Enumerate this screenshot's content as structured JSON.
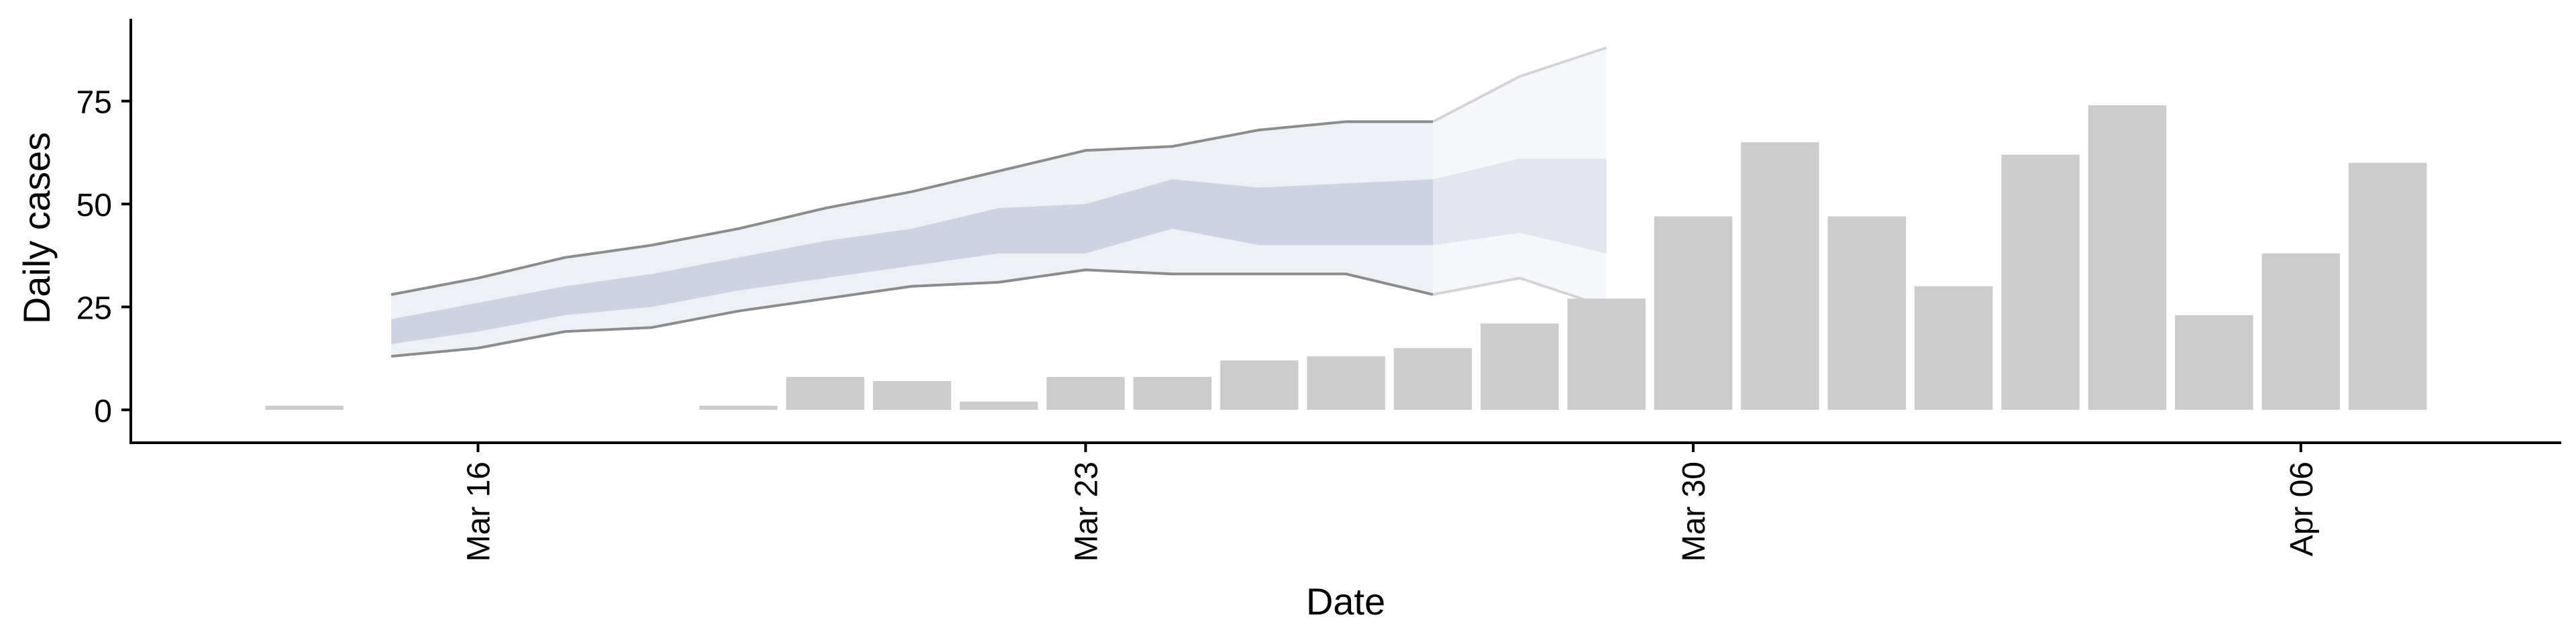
{
  "chart_data": {
    "type": "bar",
    "title": "",
    "xlabel": "Date",
    "ylabel": "Daily cases",
    "ylim": [
      -8,
      95
    ],
    "xlim": [
      "2020-03-12",
      "2020-04-09"
    ],
    "grid": false,
    "y_ticks": [
      0,
      25,
      50,
      75
    ],
    "x_ticks": [
      {
        "date": "2020-03-16",
        "label": "Mar 16"
      },
      {
        "date": "2020-03-23",
        "label": "Mar 23"
      },
      {
        "date": "2020-03-30",
        "label": "Mar 30"
      },
      {
        "date": "2020-04-06",
        "label": "Apr 06"
      }
    ],
    "bars": {
      "color": "#cccccc",
      "dates": [
        "2020-03-14",
        "2020-03-15",
        "2020-03-16",
        "2020-03-17",
        "2020-03-18",
        "2020-03-19",
        "2020-03-20",
        "2020-03-21",
        "2020-03-22",
        "2020-03-23",
        "2020-03-24",
        "2020-03-25",
        "2020-03-26",
        "2020-03-27",
        "2020-03-28",
        "2020-03-29",
        "2020-03-30",
        "2020-03-31",
        "2020-04-01",
        "2020-04-02",
        "2020-04-03",
        "2020-04-04",
        "2020-04-05",
        "2020-04-06",
        "2020-04-07"
      ],
      "values": [
        1,
        0,
        0,
        0,
        0,
        1,
        8,
        7,
        2,
        8,
        8,
        12,
        13,
        15,
        21,
        27,
        47,
        65,
        47,
        30,
        62,
        74,
        23,
        38,
        60
      ]
    },
    "ribbon": {
      "outer_color": "#dfe3ec",
      "inner_color": "#b8c0d6",
      "line_color": "#8c8c8c",
      "dates": [
        "2020-03-15",
        "2020-03-16",
        "2020-03-17",
        "2020-03-18",
        "2020-03-19",
        "2020-03-20",
        "2020-03-21",
        "2020-03-22",
        "2020-03-23",
        "2020-03-24",
        "2020-03-25",
        "2020-03-26",
        "2020-03-27",
        "2020-03-28",
        "2020-03-29"
      ],
      "outer_lower": [
        13,
        15,
        19,
        20,
        24,
        27,
        30,
        31,
        34,
        33,
        33,
        33,
        28,
        32,
        25
      ],
      "outer_upper": [
        28,
        32,
        37,
        40,
        44,
        49,
        53,
        58,
        63,
        64,
        68,
        70,
        70,
        81,
        88
      ],
      "inner_lower": [
        16,
        19,
        23,
        25,
        29,
        32,
        35,
        38,
        38,
        44,
        40,
        40,
        40,
        43,
        38
      ],
      "inner_upper": [
        22,
        26,
        30,
        33,
        37,
        41,
        44,
        49,
        50,
        56,
        54,
        55,
        56,
        61,
        61
      ],
      "faded_from": "2020-03-27"
    }
  }
}
